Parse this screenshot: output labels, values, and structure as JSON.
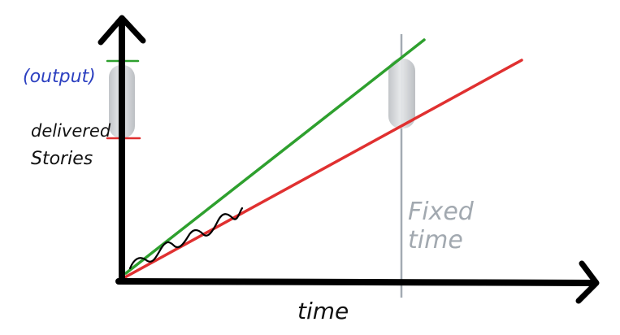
{
  "labels": {
    "output": "(output)",
    "delivered_line1": "delivered",
    "delivered_line2": "Stories",
    "fixed_line1": "Fixed",
    "fixed_line2": "time",
    "x_axis": "time"
  },
  "colors": {
    "axis": "#000000",
    "green_line": "#2ea02e",
    "red_line": "#e03030",
    "fixed_time_line": "#9aa3ab",
    "output_label": "#2b3fc0",
    "gap_highlight": "#c8cacd"
  }
}
